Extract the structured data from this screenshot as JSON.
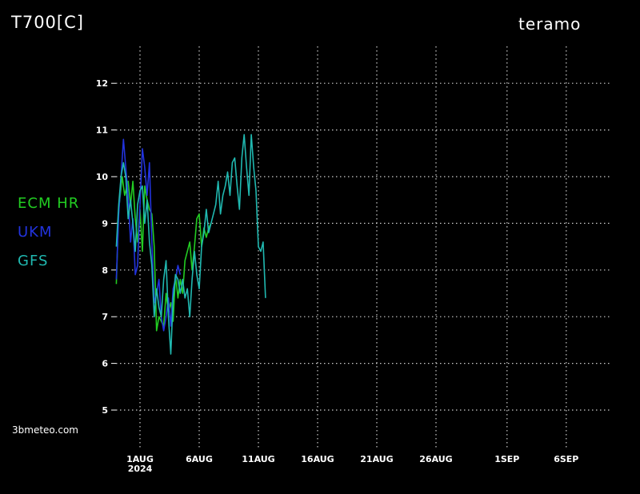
{
  "header": {
    "title": "T700[C]",
    "location": "teramo"
  },
  "footer": {
    "brand": "3bmeteo.com"
  },
  "chart_data": {
    "type": "line",
    "title": "T700[C]",
    "ylim": [
      4.5,
      12.5
    ],
    "y_ticks": [
      5,
      6,
      7,
      8,
      9,
      10,
      11,
      12
    ],
    "x_ticks": [
      {
        "label": "1AUG",
        "sub": "2024",
        "day": 1
      },
      {
        "label": "6AUG",
        "sub": "",
        "day": 6
      },
      {
        "label": "11AUG",
        "sub": "",
        "day": 11
      },
      {
        "label": "16AUG",
        "sub": "",
        "day": 16
      },
      {
        "label": "21AUG",
        "sub": "",
        "day": 21
      },
      {
        "label": "26AUG",
        "sub": "",
        "day": 26
      },
      {
        "label": "1SEP",
        "sub": "",
        "day": 32
      },
      {
        "label": "6SEP",
        "sub": "",
        "day": 37
      }
    ],
    "grid": true,
    "legend_position": "left",
    "series": [
      {
        "name": "ECM HR",
        "color": "#22cc22",
        "points": [
          [
            -1.0,
            7.7
          ],
          [
            -0.8,
            9.3
          ],
          [
            -0.5,
            10.0
          ],
          [
            -0.3,
            9.6
          ],
          [
            0.0,
            9.9
          ],
          [
            0.2,
            9.4
          ],
          [
            0.4,
            9.9
          ],
          [
            0.6,
            9.1
          ],
          [
            0.8,
            8.6
          ],
          [
            1.0,
            9.3
          ],
          [
            1.2,
            8.4
          ],
          [
            1.4,
            9.8
          ],
          [
            1.6,
            9.5
          ],
          [
            1.8,
            9.3
          ],
          [
            2.0,
            9.2
          ],
          [
            2.2,
            8.5
          ],
          [
            2.4,
            6.7
          ],
          [
            2.6,
            7.0
          ],
          [
            2.8,
            6.9
          ],
          [
            3.0,
            6.8
          ],
          [
            3.2,
            7.5
          ],
          [
            3.4,
            7.1
          ],
          [
            3.6,
            7.3
          ],
          [
            3.8,
            6.9
          ],
          [
            4.0,
            7.9
          ],
          [
            4.2,
            7.4
          ],
          [
            4.4,
            7.8
          ],
          [
            4.6,
            7.5
          ],
          [
            4.8,
            8.2
          ],
          [
            5.0,
            8.4
          ],
          [
            5.2,
            8.6
          ],
          [
            5.4,
            8.0
          ],
          [
            5.6,
            8.5
          ],
          [
            5.8,
            9.1
          ],
          [
            6.0,
            9.2
          ],
          [
            6.2,
            8.5
          ],
          [
            6.4,
            8.9
          ],
          [
            6.6,
            8.7
          ],
          [
            6.8,
            8.9
          ],
          [
            7.0,
            9.0
          ]
        ]
      },
      {
        "name": "UKM",
        "color": "#2233dd",
        "points": [
          [
            -1.0,
            7.8
          ],
          [
            -0.8,
            9.2
          ],
          [
            -0.6,
            10.0
          ],
          [
            -0.4,
            10.8
          ],
          [
            -0.2,
            10.2
          ],
          [
            0.0,
            9.6
          ],
          [
            0.2,
            8.6
          ],
          [
            0.4,
            9.1
          ],
          [
            0.6,
            7.9
          ],
          [
            0.8,
            8.1
          ],
          [
            1.0,
            9.4
          ],
          [
            1.2,
            10.6
          ],
          [
            1.4,
            10.2
          ],
          [
            1.6,
            9.6
          ],
          [
            1.8,
            10.3
          ],
          [
            2.0,
            8.6
          ],
          [
            2.2,
            7.3
          ],
          [
            2.4,
            7.5
          ],
          [
            2.6,
            7.8
          ],
          [
            2.8,
            7.0
          ],
          [
            3.0,
            6.7
          ],
          [
            3.2,
            7.0
          ],
          [
            3.4,
            7.4
          ],
          [
            3.6,
            6.8
          ],
          [
            3.8,
            7.6
          ],
          [
            4.0,
            7.8
          ],
          [
            4.2,
            8.1
          ],
          [
            4.4,
            7.9
          ]
        ]
      },
      {
        "name": "GFS",
        "color": "#20b8b0",
        "points": [
          [
            -1.0,
            8.5
          ],
          [
            -0.8,
            9.4
          ],
          [
            -0.6,
            10.0
          ],
          [
            -0.4,
            10.3
          ],
          [
            -0.2,
            10.0
          ],
          [
            0.0,
            9.1
          ],
          [
            0.2,
            9.5
          ],
          [
            0.4,
            9.0
          ],
          [
            0.6,
            8.4
          ],
          [
            0.8,
            9.4
          ],
          [
            1.0,
            9.7
          ],
          [
            1.2,
            9.8
          ],
          [
            1.4,
            9.0
          ],
          [
            1.6,
            9.5
          ],
          [
            1.8,
            8.6
          ],
          [
            2.0,
            8.1
          ],
          [
            2.2,
            7.0
          ],
          [
            2.4,
            7.6
          ],
          [
            2.6,
            7.2
          ],
          [
            2.8,
            7.0
          ],
          [
            3.0,
            7.8
          ],
          [
            3.2,
            8.2
          ],
          [
            3.4,
            7.0
          ],
          [
            3.6,
            6.2
          ],
          [
            3.8,
            7.4
          ],
          [
            4.0,
            7.9
          ],
          [
            4.2,
            7.8
          ],
          [
            4.4,
            7.5
          ],
          [
            4.6,
            7.8
          ],
          [
            4.8,
            7.4
          ],
          [
            5.0,
            7.6
          ],
          [
            5.2,
            7.0
          ],
          [
            5.4,
            7.8
          ],
          [
            5.6,
            8.4
          ],
          [
            5.8,
            7.9
          ],
          [
            6.0,
            7.6
          ],
          [
            6.2,
            8.5
          ],
          [
            6.4,
            8.8
          ],
          [
            6.6,
            9.3
          ],
          [
            6.8,
            8.8
          ],
          [
            7.0,
            9.0
          ],
          [
            7.2,
            9.2
          ],
          [
            7.4,
            9.4
          ],
          [
            7.6,
            9.9
          ],
          [
            7.8,
            9.2
          ],
          [
            8.0,
            9.6
          ],
          [
            8.2,
            9.8
          ],
          [
            8.4,
            10.1
          ],
          [
            8.6,
            9.6
          ],
          [
            8.8,
            10.3
          ],
          [
            9.0,
            10.4
          ],
          [
            9.2,
            9.8
          ],
          [
            9.4,
            9.3
          ],
          [
            9.6,
            10.4
          ],
          [
            9.8,
            10.9
          ],
          [
            10.0,
            10.2
          ],
          [
            10.2,
            9.6
          ],
          [
            10.4,
            10.9
          ],
          [
            10.6,
            10.2
          ],
          [
            10.8,
            9.7
          ],
          [
            11.0,
            8.5
          ],
          [
            11.2,
            8.4
          ],
          [
            11.4,
            8.6
          ],
          [
            11.6,
            7.4
          ]
        ]
      }
    ]
  }
}
